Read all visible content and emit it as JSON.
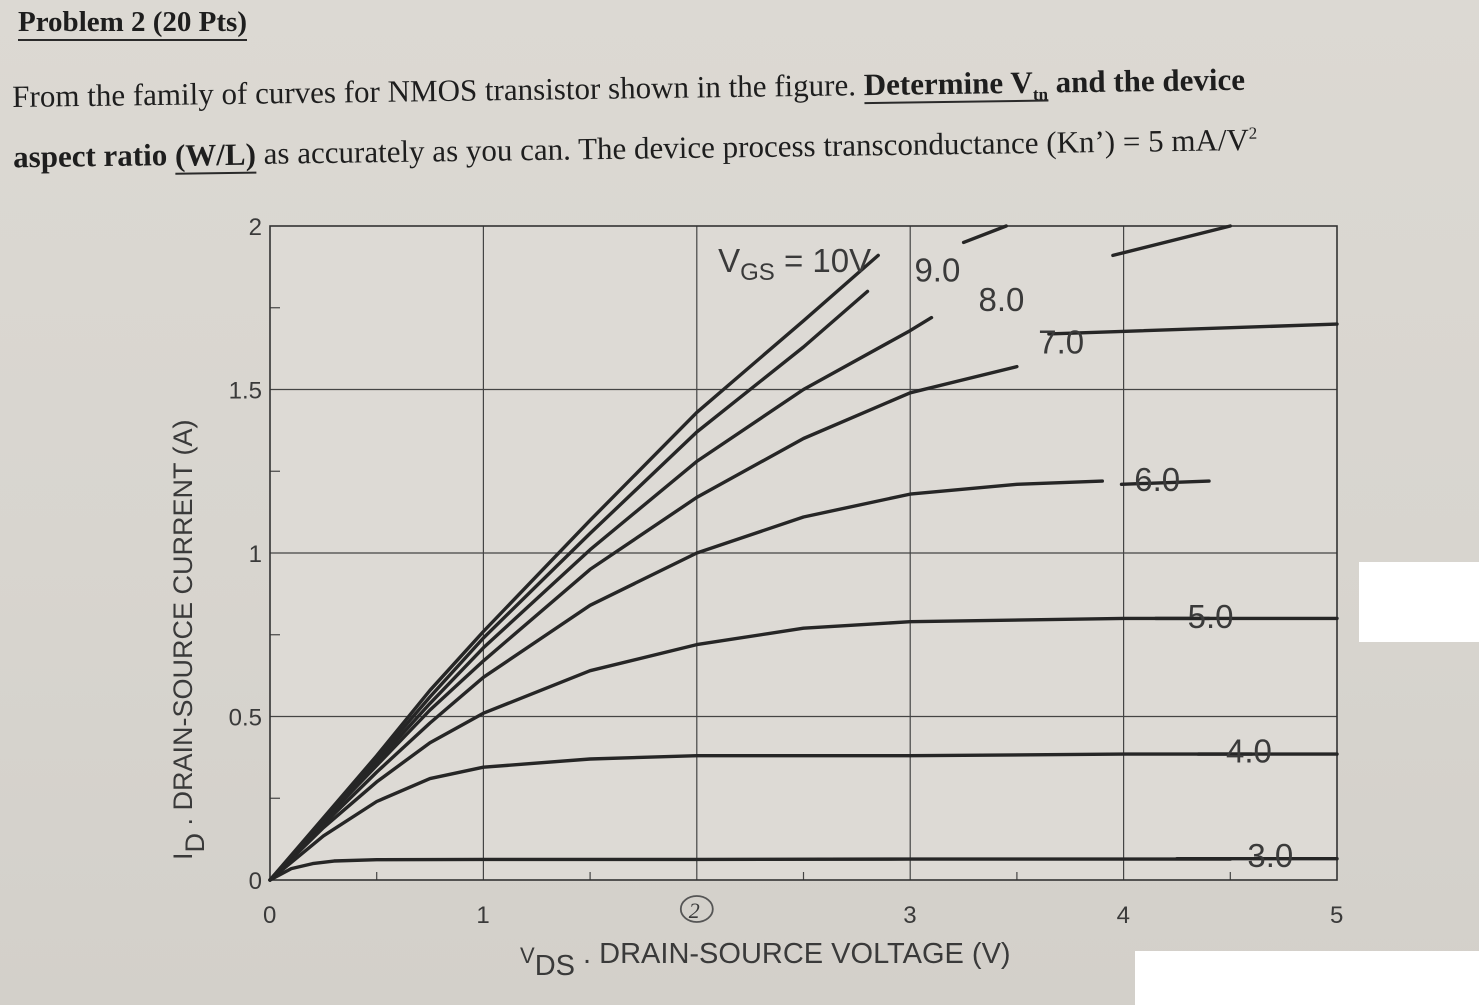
{
  "problem": {
    "title": "Problem 2 (20 Pts)",
    "line1_a": "From the family of curves for NMOS transistor shown in the figure. ",
    "line1_b": "Determine V",
    "line1_sub": "tn",
    "line1_c": " and the device",
    "line2_a": "aspect ratio ",
    "line2_b": "(W/L)",
    "line2_c": " as accurately as you can. The device process transconductance (Kn’) = 5 mA/V",
    "line2_sup": "2"
  },
  "handwritten_note": "2",
  "chart_data": {
    "type": "line",
    "xlabel_symbol": "V",
    "xlabel_sub": "DS",
    "xlabel_text": "DRAIN-SOURCE VOLTAGE (V)",
    "ylabel_symbol": "I",
    "ylabel_sub": "D",
    "ylabel_text": "DRAIN-SOURCE CURRENT (A)",
    "xlim": [
      0,
      5
    ],
    "ylim": [
      0,
      2
    ],
    "x_ticks": [
      "0",
      "1",
      "",
      "3",
      "4",
      "5"
    ],
    "y_ticks": [
      "0",
      "0.5",
      "1",
      "1.5",
      "2"
    ],
    "grid": true,
    "series": [
      {
        "name": "3.0",
        "x": [
          0,
          0.1,
          0.2,
          0.3,
          0.5,
          1,
          2,
          3,
          4,
          4.5
        ],
        "values": [
          0,
          0.035,
          0.05,
          0.058,
          0.062,
          0.063,
          0.063,
          0.064,
          0.064,
          0.064
        ]
      },
      {
        "name": "4.0",
        "x": [
          0,
          0.25,
          0.5,
          0.75,
          1,
          1.5,
          2,
          3,
          4,
          4.6
        ],
        "values": [
          0,
          0.135,
          0.24,
          0.31,
          0.345,
          0.37,
          0.38,
          0.38,
          0.385,
          0.385
        ]
      },
      {
        "name": "5.0",
        "x": [
          0,
          0.25,
          0.5,
          0.75,
          1,
          1.5,
          2,
          2.5,
          3,
          4,
          4.4
        ],
        "values": [
          0,
          0.16,
          0.3,
          0.42,
          0.51,
          0.64,
          0.72,
          0.77,
          0.79,
          0.8,
          0.8
        ]
      },
      {
        "name": "6.0",
        "x": [
          0,
          0.25,
          0.5,
          0.75,
          1,
          1.5,
          2,
          2.5,
          3,
          3.5,
          3.9
        ],
        "values": [
          0,
          0.17,
          0.33,
          0.48,
          0.62,
          0.84,
          1.0,
          1.11,
          1.18,
          1.21,
          1.22
        ]
      },
      {
        "name": "7.0",
        "x": [
          0,
          0.25,
          0.5,
          0.75,
          1,
          1.5,
          2,
          2.5,
          3,
          3.5
        ],
        "values": [
          0,
          0.18,
          0.35,
          0.52,
          0.67,
          0.95,
          1.17,
          1.35,
          1.49,
          1.57
        ]
      },
      {
        "name": "8.0",
        "x": [
          0,
          0.25,
          0.5,
          0.75,
          1,
          1.5,
          2,
          2.5,
          3,
          3.1
        ],
        "values": [
          0,
          0.18,
          0.36,
          0.54,
          0.71,
          1.01,
          1.28,
          1.5,
          1.68,
          1.72
        ]
      },
      {
        "name": "9.0",
        "x": [
          0,
          0.25,
          0.5,
          0.75,
          1,
          1.5,
          2,
          2.5,
          2.8
        ],
        "values": [
          0,
          0.185,
          0.37,
          0.56,
          0.74,
          1.06,
          1.37,
          1.63,
          1.8
        ]
      },
      {
        "name": "10V",
        "x": [
          0,
          0.25,
          0.5,
          0.75,
          1,
          1.5,
          2,
          2.5,
          2.85
        ],
        "values": [
          0,
          0.19,
          0.38,
          0.58,
          0.76,
          1.1,
          1.43,
          1.71,
          1.91
        ]
      }
    ],
    "top_right_segments": [
      {
        "x": [
          3.25,
          3.45
        ],
        "values": [
          1.95,
          2.0
        ]
      },
      {
        "x": [
          3.95,
          4.5
        ],
        "values": [
          1.91,
          2.0
        ]
      }
    ],
    "saturation_tails": [
      {
        "x": [
          4.25,
          5.0
        ],
        "values": [
          0.065,
          0.065
        ]
      },
      {
        "x": [
          4.35,
          5.0
        ],
        "values": [
          0.385,
          0.385
        ]
      },
      {
        "x": [
          4.15,
          5.0
        ],
        "values": [
          0.8,
          0.8
        ]
      },
      {
        "x": [
          3.99,
          4.4
        ],
        "values": [
          1.21,
          1.22
        ]
      },
      {
        "x": [
          3.65,
          5.0
        ],
        "values": [
          1.67,
          1.7
        ]
      }
    ],
    "curve_labels": [
      {
        "text": "V",
        "sub": "GS",
        "rest": " = 10V",
        "series": "10V"
      },
      {
        "text": "9.0",
        "series": "9.0"
      },
      {
        "text": "8.0",
        "series": "8.0"
      },
      {
        "text": "7.0",
        "series": "7.0"
      },
      {
        "text": "6.0",
        "series": "6.0"
      },
      {
        "text": "5.0",
        "series": "5.0"
      },
      {
        "text": "4.0",
        "series": "4.0"
      },
      {
        "text": "3.0",
        "series": "3.0"
      }
    ]
  }
}
